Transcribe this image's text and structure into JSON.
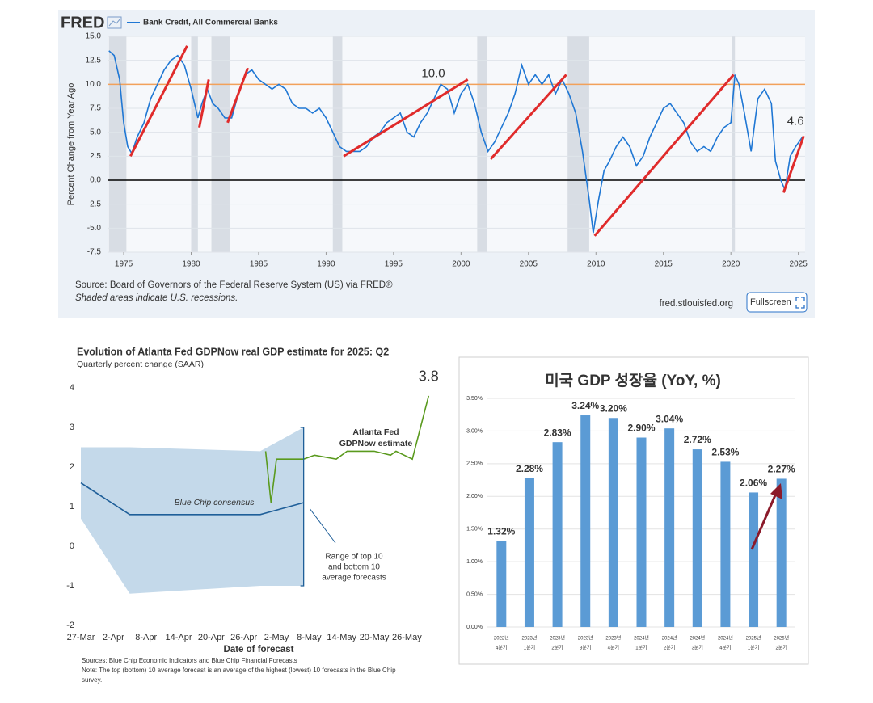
{
  "chart_data": [
    {
      "type": "line",
      "logo": "FRED",
      "ylabel": "Percent Change from Year Ago",
      "xlim": [
        1973.8,
        2025.5
      ],
      "xticks": [
        1975,
        1980,
        1985,
        1990,
        1995,
        2000,
        2005,
        2010,
        2015,
        2020,
        2025
      ],
      "ylim": [
        -7.5,
        15
      ],
      "yticks": [
        {
          "value": 15,
          "label": "15.0"
        },
        12.5,
        {
          "value": 10,
          "label": "10.0"
        },
        7.5,
        {
          "value": 5,
          "label": "5.0"
        },
        2.5,
        {
          "value": 0,
          "label": "0.0"
        },
        -2.5,
        {
          "value": -5,
          "label": "-5.0"
        },
        -7.5
      ],
      "grid": true,
      "recessions": [
        [
          1973.9,
          1975.2
        ],
        [
          1980.0,
          1980.5
        ],
        [
          1981.5,
          1982.9
        ],
        [
          1990.5,
          1991.2
        ],
        [
          2001.2,
          2001.9
        ],
        [
          2007.9,
          2009.5
        ],
        [
          2020.1,
          2020.3
        ]
      ],
      "hlines": [
        {
          "value": 10,
          "label": "10.0",
          "color": "#f2a15a"
        },
        {
          "value": 0,
          "color": "#000000"
        }
      ],
      "trendlines": [
        [
          [
            1975.5,
            2.5
          ],
          [
            1979.7,
            14
          ]
        ],
        [
          [
            1980.6,
            5.5
          ],
          [
            1981.3,
            10.5
          ]
        ],
        [
          [
            1982.7,
            6
          ],
          [
            1984.2,
            11.7
          ]
        ],
        [
          [
            1991.3,
            2.5
          ],
          [
            2000.5,
            10.5
          ]
        ],
        [
          [
            2002.2,
            2.2
          ],
          [
            2007.8,
            11
          ]
        ],
        [
          [
            2009.9,
            -5.8
          ],
          [
            2020.2,
            11
          ]
        ],
        [
          [
            2023.9,
            -1.3
          ],
          [
            2025.4,
            4.6
          ]
        ]
      ],
      "trend_color": "#e02b2b",
      "annotations": [
        {
          "x": 2025.3,
          "y": 4.6,
          "text": "4.6"
        }
      ],
      "x": [
        1973.9,
        1974.3,
        1974.7,
        1975.0,
        1975.3,
        1975.6,
        1976,
        1976.5,
        1977,
        1977.5,
        1978,
        1978.5,
        1979,
        1979.5,
        1980,
        1980.5,
        1980.8,
        1981.2,
        1981.6,
        1982,
        1982.5,
        1983,
        1983.5,
        1984,
        1984.5,
        1985,
        1985.5,
        1986,
        1986.5,
        1987,
        1987.5,
        1988,
        1988.5,
        1989,
        1989.5,
        1990,
        1990.5,
        1991,
        1991.5,
        1992,
        1992.5,
        1993,
        1993.5,
        1994,
        1994.5,
        1995,
        1995.5,
        1996,
        1996.5,
        1997,
        1997.5,
        1998,
        1998.5,
        1999,
        1999.5,
        2000,
        2000.5,
        2001,
        2001.5,
        2002,
        2002.5,
        2003,
        2003.5,
        2004,
        2004.5,
        2005,
        2005.5,
        2006,
        2006.5,
        2007,
        2007.5,
        2008,
        2008.5,
        2009,
        2009.5,
        2009.8,
        2010.2,
        2010.6,
        2011,
        2011.5,
        2012,
        2012.5,
        2013,
        2013.5,
        2014,
        2014.5,
        2015,
        2015.5,
        2016,
        2016.5,
        2017,
        2017.5,
        2018,
        2018.5,
        2019,
        2019.5,
        2020.0,
        2020.3,
        2020.6,
        2021,
        2021.5,
        2022,
        2022.5,
        2023,
        2023.3,
        2023.7,
        2024,
        2024.4,
        2024.8,
        2025.3
      ],
      "series": [
        {
          "name": "Bank Credit, All Commercial Banks",
          "color": "#1f77d4",
          "values": [
            13.5,
            13,
            10.5,
            6,
            3.5,
            2.8,
            4.5,
            6,
            8.5,
            10,
            11.5,
            12.5,
            13,
            12,
            9.5,
            6.5,
            8,
            9.5,
            8,
            7.5,
            6.5,
            6.5,
            9,
            11,
            11.5,
            10.5,
            10,
            9.5,
            10,
            9.5,
            8,
            7.5,
            7.5,
            7,
            7.5,
            6.5,
            5,
            3.5,
            3,
            3,
            3,
            3.5,
            4.5,
            5,
            6,
            6.5,
            7,
            5,
            4.5,
            6,
            7,
            8.5,
            10,
            9.5,
            7,
            9,
            10,
            8,
            5,
            3,
            4,
            5.5,
            7,
            9,
            12,
            10,
            11,
            10,
            11,
            9,
            10.5,
            9,
            7,
            3,
            -2,
            -5.5,
            -2,
            1,
            2,
            3.5,
            4.5,
            3.5,
            1.5,
            2.5,
            4.5,
            6,
            7.5,
            8,
            7,
            6,
            4,
            3,
            3.5,
            3,
            4.5,
            5.5,
            6,
            11,
            10,
            7,
            3,
            8.5,
            9.5,
            8,
            2,
            0,
            -1,
            2.5,
            3.5,
            4.5
          ]
        }
      ],
      "source": "Source: Board of Governors of the Federal Reserve System (US) via FRED®",
      "note": "Shaded areas indicate U.S. recessions.",
      "url": "fred.stlouisfed.org",
      "button": "Fullscreen"
    },
    {
      "type": "line",
      "title": "Evolution of Atlanta Fed GDPNow real GDP estimate for 2025: Q2",
      "subtitle": "Quarterly percent change (SAAR)",
      "xlabel": "Date of forecast",
      "xlim": [
        0,
        65
      ],
      "xticks": [
        {
          "value": 0,
          "label": "27-Mar"
        },
        {
          "value": 6,
          "label": "2-Apr"
        },
        {
          "value": 12,
          "label": "8-Apr"
        },
        {
          "value": 18,
          "label": "14-Apr"
        },
        {
          "value": 24,
          "label": "20-Apr"
        },
        {
          "value": 30,
          "label": "26-Apr"
        },
        {
          "value": 36,
          "label": "2-May"
        },
        {
          "value": 42,
          "label": "8-May"
        },
        {
          "value": 48,
          "label": "14-May"
        },
        {
          "value": 54,
          "label": "20-May"
        },
        {
          "value": 60,
          "label": "26-May"
        }
      ],
      "ylim": [
        -2,
        4
      ],
      "yticks": [
        4,
        3,
        2,
        1,
        0,
        -1,
        -2
      ],
      "band": {
        "name": [
          "Range of top 10",
          "and bottom 10",
          "average forecasts"
        ],
        "color": "#c4d9ea",
        "x": [
          0,
          9,
          33,
          41
        ],
        "upper": [
          2.5,
          2.5,
          2.4,
          3.0
        ],
        "lower": [
          0.7,
          -1.2,
          -1.0,
          -1.0
        ]
      },
      "series": [
        {
          "name": [
            "Blue Chip consensus"
          ],
          "color": "#1f5f99",
          "x": [
            0,
            9,
            33,
            41
          ],
          "values": [
            1.6,
            0.8,
            0.8,
            1.1
          ]
        },
        {
          "name": [
            "Atlanta Fed",
            "GDPNow estimate"
          ],
          "color": "#5a9a1e",
          "x": [
            34,
            35,
            36,
            41,
            43,
            47,
            49,
            50,
            54,
            57,
            58,
            61,
            64
          ],
          "values": [
            2.4,
            1.1,
            2.2,
            2.2,
            2.3,
            2.2,
            2.4,
            2.4,
            2.4,
            2.3,
            2.4,
            2.2,
            3.8
          ]
        }
      ],
      "annotations": [
        {
          "x": 64,
          "y": 3.8,
          "text": "3.8"
        }
      ],
      "sources": "Sources: Blue Chip Economic Indicators and Blue Chip Financial Forecasts",
      "note": [
        "Note: The top (bottom) 10 average forecast is an average of the highest (lowest) 10 forecasts in the Blue Chip",
        "survey."
      ]
    },
    {
      "type": "bar",
      "title": "미국 GDP 성장율 (YoY, %)",
      "categories": [
        [
          "2022년",
          "4분기"
        ],
        [
          "2023년",
          "1분기"
        ],
        [
          "2023년",
          "2분기"
        ],
        [
          "2023년",
          "3분기"
        ],
        [
          "2023년",
          "4분기"
        ],
        [
          "2024년",
          "1분기"
        ],
        [
          "2024년",
          "2분기"
        ],
        [
          "2024년",
          "3분기"
        ],
        [
          "2024년",
          "4분기"
        ],
        [
          "2025년",
          "1분기"
        ],
        [
          "2025년",
          "2분기"
        ]
      ],
      "values": [
        1.32,
        2.28,
        2.83,
        3.24,
        3.2,
        2.9,
        3.04,
        2.72,
        2.53,
        2.06,
        2.27
      ],
      "value_labels": [
        "1.32%",
        "2.28%",
        "2.83%",
        "3.24%",
        "3.20%",
        "2.90%",
        "3.04%",
        "2.72%",
        "2.53%",
        "2.06%",
        "2.27%"
      ],
      "color": "#5b9bd5",
      "label_color": "#e0161b",
      "ylim": [
        0,
        3.5
      ],
      "yticks": [
        {
          "value": 0,
          "label": "0.00%"
        },
        {
          "value": 0.5,
          "label": "0.50%"
        },
        {
          "value": 1,
          "label": "1.00%"
        },
        {
          "value": 1.5,
          "label": "1.50%"
        },
        {
          "value": 2,
          "label": "2.00%"
        },
        {
          "value": 2.5,
          "label": "2.50%"
        },
        {
          "value": 3,
          "label": "3.00%"
        },
        {
          "value": 3.5,
          "label": "3.50%"
        }
      ],
      "grid": true
    }
  ]
}
